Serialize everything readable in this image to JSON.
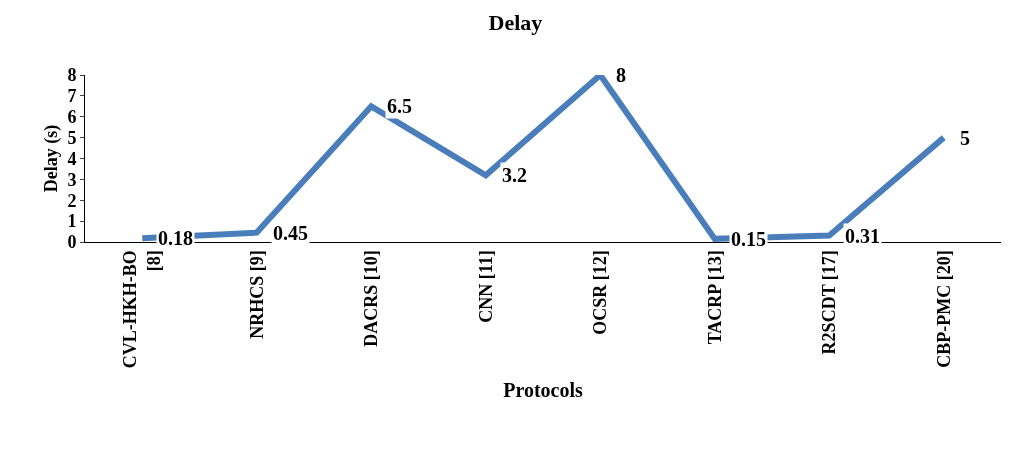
{
  "chart_data": {
    "type": "line",
    "title": "Delay",
    "xlabel": "Protocols",
    "ylabel": "Delay (s)",
    "categories": [
      "CVL-HKH-BO [8]",
      "NRHCS [9]",
      "DACRS [10]",
      "CNN [11]",
      "OCSR [12]",
      "TACRP [13]",
      "R2SCDT [17]",
      "CBP-PMC [20]"
    ],
    "series": [
      {
        "color": "#4a7ebb",
        "values": [
          0.18,
          0.45,
          6.5,
          3.2,
          8,
          0.15,
          0.31,
          5
        ]
      }
    ],
    "ylim": [
      0,
      8
    ],
    "yticks": [
      0,
      1,
      2,
      3,
      4,
      5,
      6,
      7,
      8
    ],
    "legend": false,
    "marker": "none",
    "line_style": "solid",
    "data_labels": true
  }
}
